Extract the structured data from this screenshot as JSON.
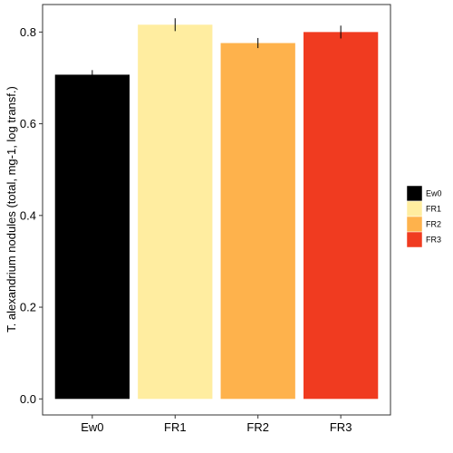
{
  "chart_data": {
    "type": "bar",
    "title": "",
    "xlabel": "",
    "ylabel": "T. alexandrium nodules (total, mg-1, log transf.)",
    "categories": [
      "Ew0",
      "FR1",
      "FR2",
      "FR3"
    ],
    "values": [
      0.707,
      0.816,
      0.776,
      0.8
    ],
    "error": [
      0.01,
      0.014,
      0.011,
      0.014
    ],
    "colors": [
      "#000000",
      "#FFEDA0",
      "#FEB24C",
      "#F03B20"
    ],
    "ylim": [
      -0.035,
      0.86
    ],
    "yticks": [
      0.0,
      0.2,
      0.4,
      0.6,
      0.8
    ],
    "ytick_labels": [
      "0.0",
      "0.2",
      "0.4",
      "0.6",
      "0.8"
    ],
    "grid": false,
    "legend": {
      "placement": "right",
      "entries": [
        "Ew0",
        "FR1",
        "FR2",
        "FR3"
      ]
    }
  }
}
